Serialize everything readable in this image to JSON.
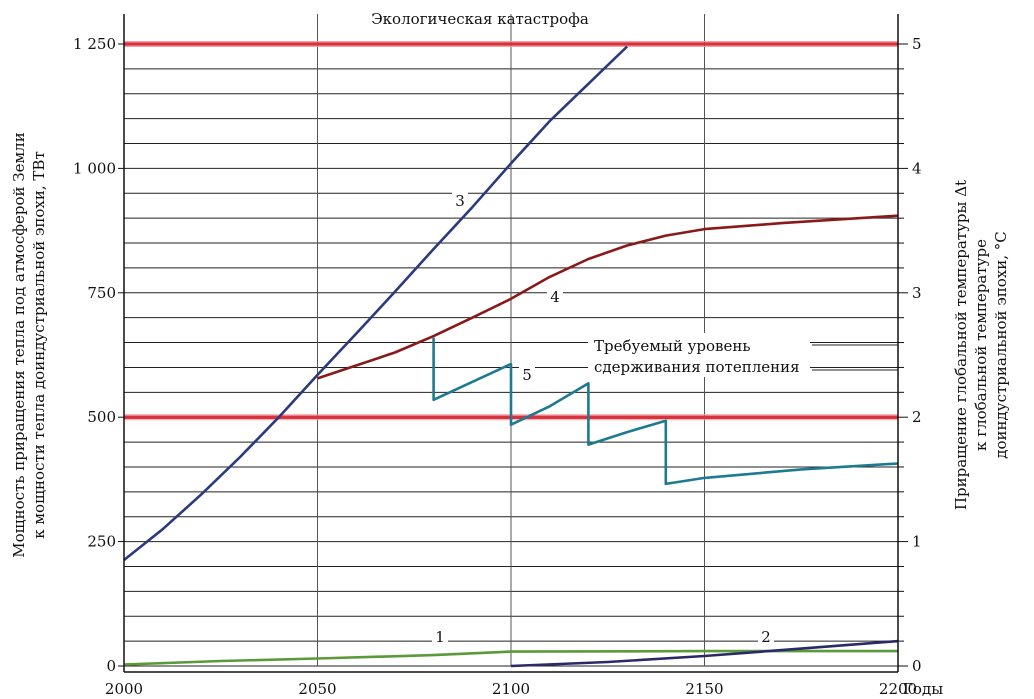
{
  "chart_data": {
    "type": "line",
    "title": "Экологическая катастрофа",
    "xlabel": "Годы",
    "ylabel_left": "Мощность приращения тепла под атмосферой Земли к мощности тепла доиндустриальной эпохи, ТВт",
    "ylabel_left_lines": [
      "Мощность приращения тепла под атмосферой Земли",
      "к мощности тепла доиндустриальной эпохи, ТВт"
    ],
    "ylabel_right": "Приращение глобальной температуры Δt к глобальной температуре доиндустриальной эпохи, °C",
    "ylabel_right_lines": [
      "Приращение глобальной температуры Δt",
      "к глобальной температуре",
      "доиндустриальной эпохи, °C"
    ],
    "xlim": [
      2000,
      2200
    ],
    "ylim_left": [
      0,
      1250
    ],
    "ylim_right": [
      0,
      5
    ],
    "grid": true,
    "x_ticks": [
      2000,
      2050,
      2100,
      2150,
      2200
    ],
    "x_tick_labels": [
      "2000",
      "2050",
      "2100",
      "2150",
      "2200"
    ],
    "y_left_ticks": [
      0,
      250,
      500,
      750,
      1000,
      1250
    ],
    "y_left_tick_labels": [
      "0",
      "250",
      "500",
      "750",
      "1 000",
      "1 250"
    ],
    "y_right_ticks": [
      0,
      1,
      2,
      3,
      4,
      5
    ],
    "y_right_tick_labels": [
      "0",
      "1",
      "2",
      "3",
      "4",
      "5"
    ],
    "threshold_lines": [
      {
        "y": 1250,
        "color": "#d9323a"
      },
      {
        "y": 500,
        "color": "#d9323a"
      }
    ],
    "annotation_required_level": [
      "Требуемый уровень",
      "сдерживания потепления"
    ],
    "series": [
      {
        "label": "1",
        "color": "#5a9a3a",
        "points": [
          [
            2000,
            3
          ],
          [
            2025,
            10
          ],
          [
            2050,
            15
          ],
          [
            2080,
            22
          ],
          [
            2100,
            29
          ],
          [
            2150,
            30
          ],
          [
            2200,
            30
          ]
        ]
      },
      {
        "label": "2",
        "color": "#2a2a6a",
        "points": [
          [
            2100,
            0
          ],
          [
            2125,
            8
          ],
          [
            2150,
            20
          ],
          [
            2175,
            35
          ],
          [
            2200,
            50
          ]
        ]
      },
      {
        "label": "3",
        "color": "#2a3a7a",
        "points": [
          [
            2000,
            213
          ],
          [
            2010,
            275
          ],
          [
            2020,
            345
          ],
          [
            2030,
            420
          ],
          [
            2040,
            500
          ],
          [
            2050,
            585
          ],
          [
            2060,
            668
          ],
          [
            2070,
            752
          ],
          [
            2080,
            838
          ],
          [
            2090,
            922
          ],
          [
            2100,
            1010
          ],
          [
            2110,
            1095
          ],
          [
            2120,
            1170
          ],
          [
            2130,
            1245
          ]
        ]
      },
      {
        "label": "4",
        "color": "#8a1a1a",
        "points": [
          [
            2050,
            578
          ],
          [
            2070,
            630
          ],
          [
            2080,
            663
          ],
          [
            2090,
            700
          ],
          [
            2100,
            738
          ],
          [
            2110,
            782
          ],
          [
            2120,
            818
          ],
          [
            2130,
            845
          ],
          [
            2140,
            865
          ],
          [
            2150,
            878
          ],
          [
            2170,
            890
          ],
          [
            2200,
            905
          ]
        ]
      },
      {
        "label": "5",
        "color": "#1e7a90",
        "points": [
          [
            2080,
            660
          ],
          [
            2080,
            535
          ],
          [
            2100,
            607
          ],
          [
            2100,
            485
          ],
          [
            2110,
            522
          ],
          [
            2120,
            568
          ],
          [
            2120,
            445
          ],
          [
            2130,
            470
          ],
          [
            2140,
            493
          ],
          [
            2140,
            366
          ],
          [
            2150,
            378
          ],
          [
            2175,
            395
          ],
          [
            2200,
            407
          ]
        ]
      }
    ]
  }
}
